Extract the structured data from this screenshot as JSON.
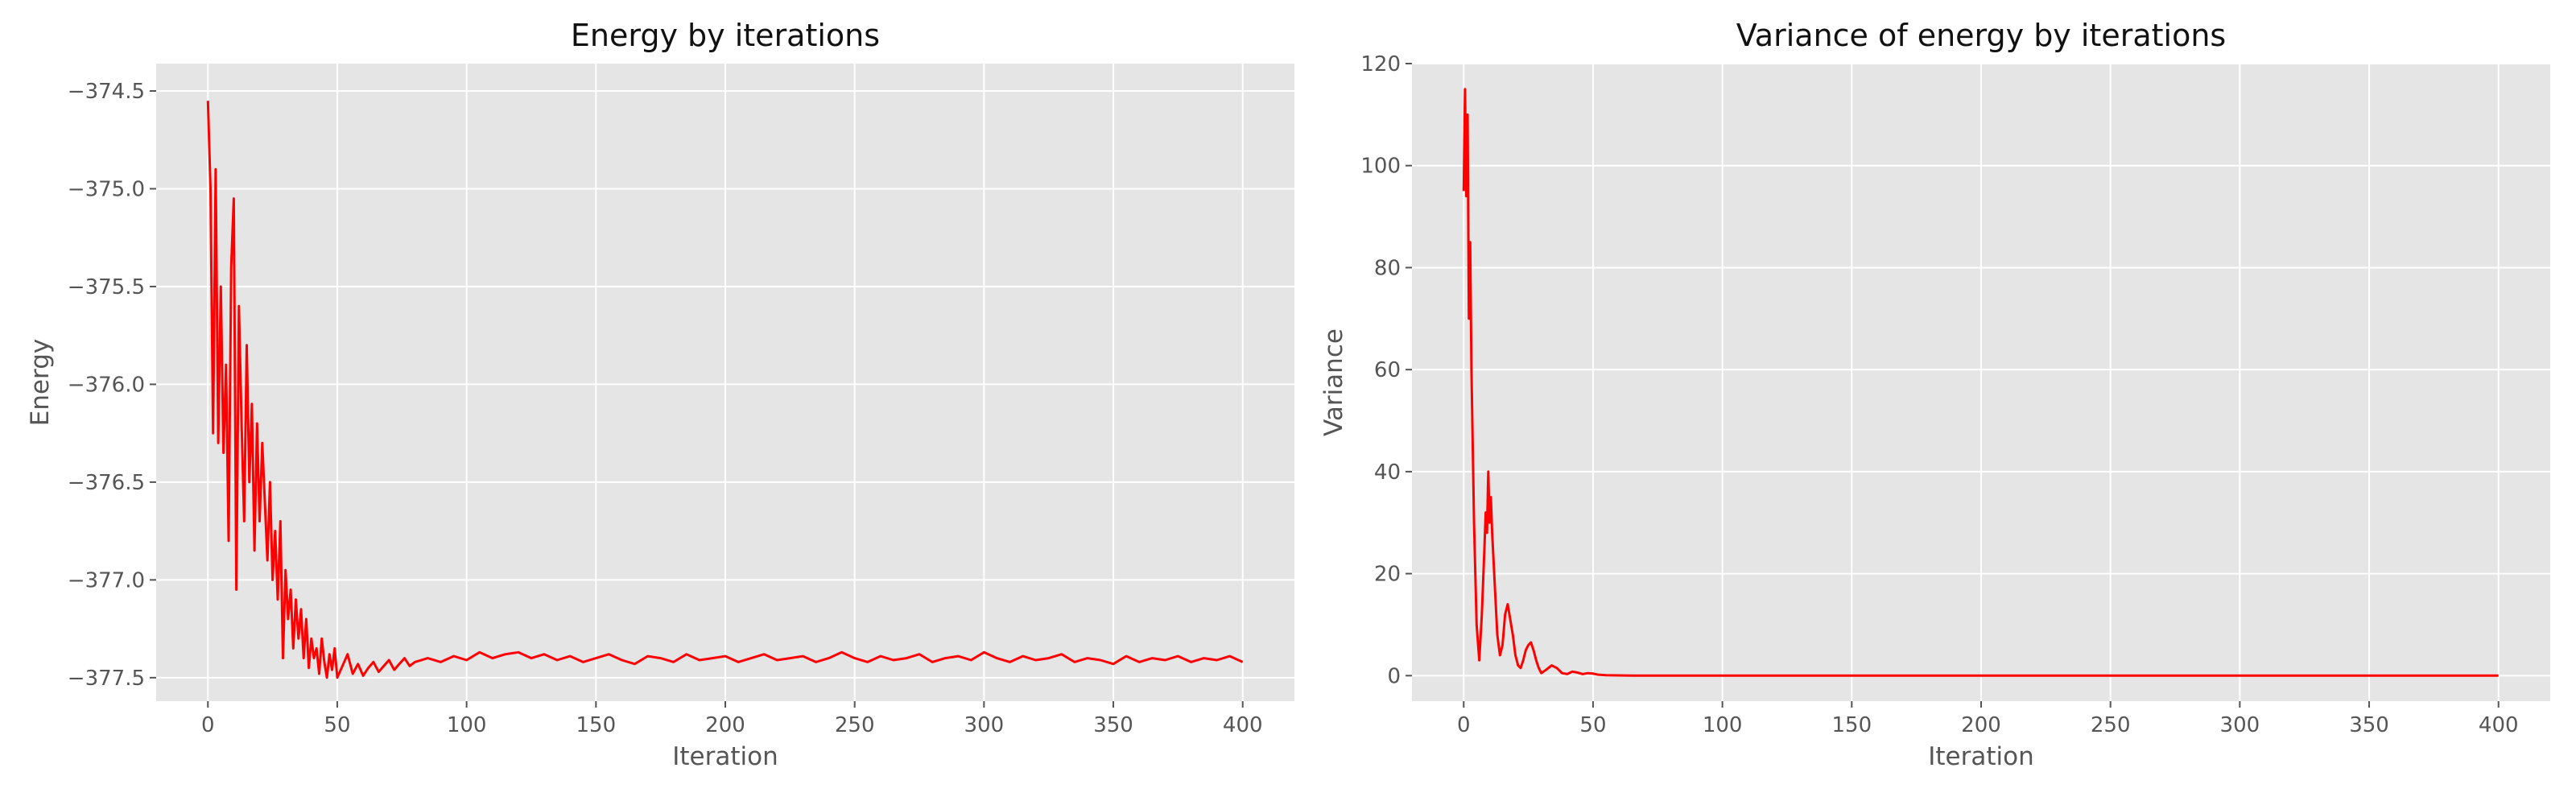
{
  "chart_data": [
    {
      "type": "line",
      "title": "Energy by iterations",
      "xlabel": "Iteration",
      "ylabel": "Energy",
      "xlim": [
        -20,
        420
      ],
      "ylim": [
        -377.62,
        -374.36
      ],
      "xticks": [
        0,
        50,
        100,
        150,
        200,
        250,
        300,
        350,
        400
      ],
      "xtick_labels": [
        "0",
        "50",
        "100",
        "150",
        "200",
        "250",
        "300",
        "350",
        "400"
      ],
      "yticks": [
        -374.5,
        -375.0,
        -375.5,
        -376.0,
        -376.5,
        -377.0,
        -377.5
      ],
      "ytick_labels": [
        "−374.5",
        "−375.0",
        "−375.5",
        "−376.0",
        "−376.5",
        "−377.0",
        "−377.5"
      ],
      "grid": true,
      "color": "#ff0000",
      "series": [
        {
          "x": [
            0,
            1,
            2,
            3,
            4,
            5,
            6,
            7,
            8,
            9,
            10,
            11,
            12,
            13,
            14,
            15,
            16,
            17,
            18,
            19,
            20,
            21,
            22,
            23,
            24,
            25,
            26,
            27,
            28,
            29,
            30,
            31,
            32,
            33,
            34,
            35,
            36,
            37,
            38,
            39,
            40,
            41,
            42,
            43,
            44,
            45,
            46,
            47,
            48,
            49,
            50,
            52,
            54,
            56,
            58,
            60,
            62,
            64,
            66,
            68,
            70,
            72,
            74,
            76,
            78,
            80,
            85,
            90,
            95,
            100,
            105,
            110,
            115,
            120,
            125,
            130,
            135,
            140,
            145,
            150,
            155,
            160,
            165,
            170,
            175,
            180,
            185,
            190,
            195,
            200,
            205,
            210,
            215,
            220,
            225,
            230,
            235,
            240,
            245,
            250,
            255,
            260,
            265,
            270,
            275,
            280,
            285,
            290,
            295,
            300,
            305,
            310,
            315,
            320,
            325,
            330,
            335,
            340,
            345,
            350,
            355,
            360,
            365,
            370,
            375,
            380,
            385,
            390,
            395,
            400
          ],
          "y": [
            -374.55,
            -375.0,
            -376.25,
            -374.9,
            -376.3,
            -375.5,
            -376.35,
            -375.9,
            -376.8,
            -375.4,
            -375.05,
            -377.05,
            -375.6,
            -376.2,
            -376.7,
            -375.8,
            -376.5,
            -376.1,
            -376.85,
            -376.2,
            -376.7,
            -376.3,
            -376.6,
            -376.9,
            -376.5,
            -377.0,
            -376.75,
            -377.1,
            -376.7,
            -377.4,
            -376.95,
            -377.2,
            -377.05,
            -377.35,
            -377.1,
            -377.3,
            -377.15,
            -377.4,
            -377.2,
            -377.45,
            -377.3,
            -377.4,
            -377.35,
            -377.48,
            -377.3,
            -377.42,
            -377.5,
            -377.38,
            -377.46,
            -377.35,
            -377.5,
            -377.44,
            -377.38,
            -377.48,
            -377.43,
            -377.49,
            -377.45,
            -377.42,
            -377.47,
            -377.44,
            -377.41,
            -377.46,
            -377.43,
            -377.4,
            -377.44,
            -377.42,
            -377.4,
            -377.42,
            -377.39,
            -377.41,
            -377.37,
            -377.4,
            -377.38,
            -377.37,
            -377.4,
            -377.38,
            -377.41,
            -377.39,
            -377.42,
            -377.4,
            -377.38,
            -377.41,
            -377.43,
            -377.39,
            -377.4,
            -377.42,
            -377.38,
            -377.41,
            -377.4,
            -377.39,
            -377.42,
            -377.4,
            -377.38,
            -377.41,
            -377.4,
            -377.39,
            -377.42,
            -377.4,
            -377.37,
            -377.4,
            -377.42,
            -377.39,
            -377.41,
            -377.4,
            -377.38,
            -377.42,
            -377.4,
            -377.39,
            -377.41,
            -377.37,
            -377.4,
            -377.42,
            -377.39,
            -377.41,
            -377.4,
            -377.38,
            -377.42,
            -377.4,
            -377.41,
            -377.43,
            -377.39,
            -377.42,
            -377.4,
            -377.41,
            -377.39,
            -377.42,
            -377.4,
            -377.41,
            -377.39,
            -377.42
          ]
        }
      ]
    },
    {
      "type": "line",
      "title": "Variance of energy by iterations",
      "xlabel": "Iteration",
      "ylabel": "Variance",
      "xlim": [
        -20,
        420
      ],
      "ylim": [
        -5,
        120
      ],
      "xticks": [
        0,
        50,
        100,
        150,
        200,
        250,
        300,
        350,
        400
      ],
      "xtick_labels": [
        "0",
        "50",
        "100",
        "150",
        "200",
        "250",
        "300",
        "350",
        "400"
      ],
      "yticks": [
        0,
        20,
        40,
        60,
        80,
        100,
        120
      ],
      "ytick_labels": [
        "0",
        "20",
        "40",
        "60",
        "80",
        "100",
        "120"
      ],
      "grid": true,
      "color": "#ff0000",
      "series": [
        {
          "x": [
            0,
            0.5,
            1,
            1.5,
            2,
            2.5,
            3,
            4,
            5,
            6,
            7,
            8,
            8.5,
            9,
            9.5,
            10,
            10.5,
            11,
            12,
            13,
            14,
            15,
            16,
            17,
            18,
            19,
            20,
            21,
            22,
            23,
            24,
            25,
            26,
            27,
            28,
            29,
            30,
            32,
            34,
            36,
            38,
            40,
            42,
            44,
            46,
            48,
            50,
            52,
            55,
            60,
            65,
            70,
            80,
            90,
            100,
            150,
            200,
            250,
            300,
            350,
            400
          ],
          "y": [
            95,
            115,
            94,
            110,
            70,
            85,
            60,
            30,
            10,
            3,
            12,
            25,
            32,
            28,
            40,
            30,
            35,
            28,
            18,
            8,
            4,
            6,
            12,
            14,
            11,
            8,
            4,
            2,
            1.5,
            3,
            5,
            6,
            6.5,
            5,
            3,
            1.5,
            0.5,
            1.2,
            2,
            1.5,
            0.5,
            0.3,
            0.8,
            0.6,
            0.3,
            0.5,
            0.4,
            0.2,
            0.1,
            0.05,
            0.02,
            0.01,
            0,
            0,
            0,
            0,
            0,
            0,
            0,
            0,
            0
          ]
        }
      ]
    }
  ]
}
